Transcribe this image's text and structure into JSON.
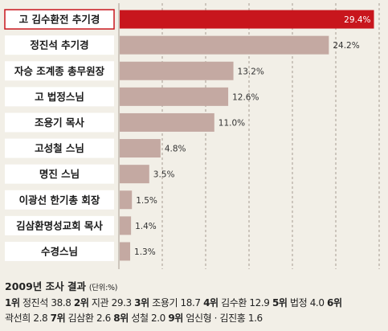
{
  "chart_data": {
    "type": "bar",
    "orientation": "horizontal",
    "categories": [
      "고 김수환전 추기경",
      "정진석 추기경",
      "자승 조계종 총무원장",
      "고 법정스님",
      "조용기 목사",
      "고성철 스님",
      "명진 스님",
      "이광선 한기총 회장",
      "김삼환명성교회 목사",
      "수경스님"
    ],
    "values": [
      29.4,
      24.2,
      13.2,
      12.6,
      11.0,
      4.8,
      3.5,
      1.5,
      1.4,
      1.3
    ],
    "value_labels": [
      "29.4%",
      "24.2%",
      "13.2%",
      "12.6%",
      "11.0%",
      "4.8%",
      "3.5%",
      "1.5%",
      "1.4%",
      "1.3%"
    ],
    "xlim": [
      0,
      30
    ],
    "grid": true,
    "highlight_index": 0,
    "colors": {
      "highlight_bar": "#c8161d",
      "bar": "#c4a9a2",
      "label_box": "#ffffff",
      "highlight_label_box": "#ffffff",
      "grid": "#a69b90",
      "background": "#f2efe7"
    }
  },
  "footer": {
    "title": "2009년 조사 결과",
    "unit": "(단위:%)",
    "line1": [
      {
        "rank": "1위",
        "text": "정진석 38.8"
      },
      {
        "rank": "2위",
        "text": "지관 29.3"
      },
      {
        "rank": "3위",
        "text": "조용기 18.7"
      },
      {
        "rank": "4위",
        "text": "김수환 12.9"
      },
      {
        "rank": "5위",
        "text": "법정 4.0"
      },
      {
        "rank": "6위",
        "text": ""
      }
    ],
    "line2": [
      {
        "rank": "",
        "text": "곽선희 2.8"
      },
      {
        "rank": "7위",
        "text": "김삼환 2.6"
      },
      {
        "rank": "8위",
        "text": "성철 2.0"
      },
      {
        "rank": "9위",
        "text": "엄신형 · 김진홍 1.6"
      }
    ]
  }
}
